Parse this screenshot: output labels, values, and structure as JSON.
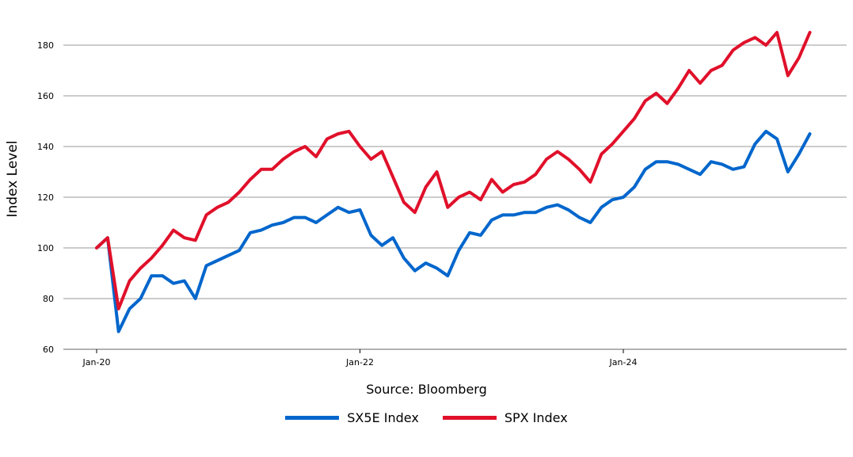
{
  "chart_data": {
    "type": "line",
    "ylabel": "Index Level",
    "ylim": [
      60,
      190
    ],
    "yticks": [
      60,
      80,
      100,
      120,
      140,
      160,
      180
    ],
    "x_tick_labels": [
      "Jan-20",
      "Jan-22",
      "Jan-24"
    ],
    "x_tick_dates": [
      "2020-01",
      "2022-01",
      "2024-01"
    ],
    "grid": "horizontal",
    "legend_position": "bottom-center",
    "source": "Source: Bloomberg",
    "series": [
      {
        "name": "SX5E Index",
        "color": "#0066cc",
        "dates": [
          "2020-01",
          "2020-02",
          "2020-03",
          "2020-04",
          "2020-05",
          "2020-06",
          "2020-07",
          "2020-08",
          "2020-09",
          "2020-10",
          "2020-11",
          "2020-12",
          "2021-01",
          "2021-02",
          "2021-03",
          "2021-04",
          "2021-05",
          "2021-06",
          "2021-07",
          "2021-08",
          "2021-09",
          "2021-10",
          "2021-11",
          "2021-12",
          "2022-01",
          "2022-02",
          "2022-03",
          "2022-04",
          "2022-05",
          "2022-06",
          "2022-07",
          "2022-08",
          "2022-09",
          "2022-10",
          "2022-11",
          "2022-12",
          "2023-01",
          "2023-02",
          "2023-03",
          "2023-04",
          "2023-05",
          "2023-06",
          "2023-07",
          "2023-08",
          "2023-09",
          "2023-10",
          "2023-11",
          "2023-12",
          "2024-01",
          "2024-02",
          "2024-03",
          "2024-04",
          "2024-05",
          "2024-06",
          "2024-07",
          "2024-08",
          "2024-09",
          "2024-10",
          "2024-11",
          "2024-12",
          "2025-01",
          "2025-02",
          "2025-03",
          "2025-04",
          "2025-05",
          "2025-06"
        ],
        "values": [
          100,
          104,
          67,
          76,
          80,
          89,
          89,
          86,
          87,
          80,
          93,
          95,
          97,
          99,
          106,
          107,
          109,
          110,
          112,
          112,
          110,
          113,
          116,
          114,
          115,
          105,
          101,
          104,
          96,
          91,
          94,
          92,
          89,
          99,
          106,
          105,
          111,
          113,
          113,
          114,
          114,
          116,
          117,
          115,
          112,
          110,
          116,
          119,
          120,
          124,
          131,
          134,
          134,
          133,
          131,
          129,
          134,
          133,
          131,
          132,
          141,
          146,
          143,
          130,
          137,
          145
        ]
      },
      {
        "name": "SPX Index",
        "color": "#e0102a",
        "dates": [
          "2020-01",
          "2020-02",
          "2020-03",
          "2020-04",
          "2020-05",
          "2020-06",
          "2020-07",
          "2020-08",
          "2020-09",
          "2020-10",
          "2020-11",
          "2020-12",
          "2021-01",
          "2021-02",
          "2021-03",
          "2021-04",
          "2021-05",
          "2021-06",
          "2021-07",
          "2021-08",
          "2021-09",
          "2021-10",
          "2021-11",
          "2021-12",
          "2022-01",
          "2022-02",
          "2022-03",
          "2022-04",
          "2022-05",
          "2022-06",
          "2022-07",
          "2022-08",
          "2022-09",
          "2022-10",
          "2022-11",
          "2022-12",
          "2023-01",
          "2023-02",
          "2023-03",
          "2023-04",
          "2023-05",
          "2023-06",
          "2023-07",
          "2023-08",
          "2023-09",
          "2023-10",
          "2023-11",
          "2023-12",
          "2024-01",
          "2024-02",
          "2024-03",
          "2024-04",
          "2024-05",
          "2024-06",
          "2024-07",
          "2024-08",
          "2024-09",
          "2024-10",
          "2024-11",
          "2024-12",
          "2025-01",
          "2025-02",
          "2025-03",
          "2025-04",
          "2025-05",
          "2025-06"
        ],
        "values": [
          100,
          104,
          76,
          87,
          92,
          96,
          101,
          107,
          104,
          103,
          113,
          116,
          118,
          122,
          127,
          131,
          131,
          135,
          138,
          140,
          136,
          143,
          145,
          146,
          140,
          135,
          138,
          128,
          118,
          114,
          124,
          130,
          116,
          120,
          122,
          119,
          127,
          122,
          125,
          126,
          129,
          135,
          138,
          135,
          131,
          126,
          137,
          141,
          146,
          151,
          158,
          161,
          157,
          163,
          170,
          165,
          170,
          172,
          178,
          181,
          183,
          180,
          185,
          168,
          175,
          185
        ]
      }
    ]
  }
}
